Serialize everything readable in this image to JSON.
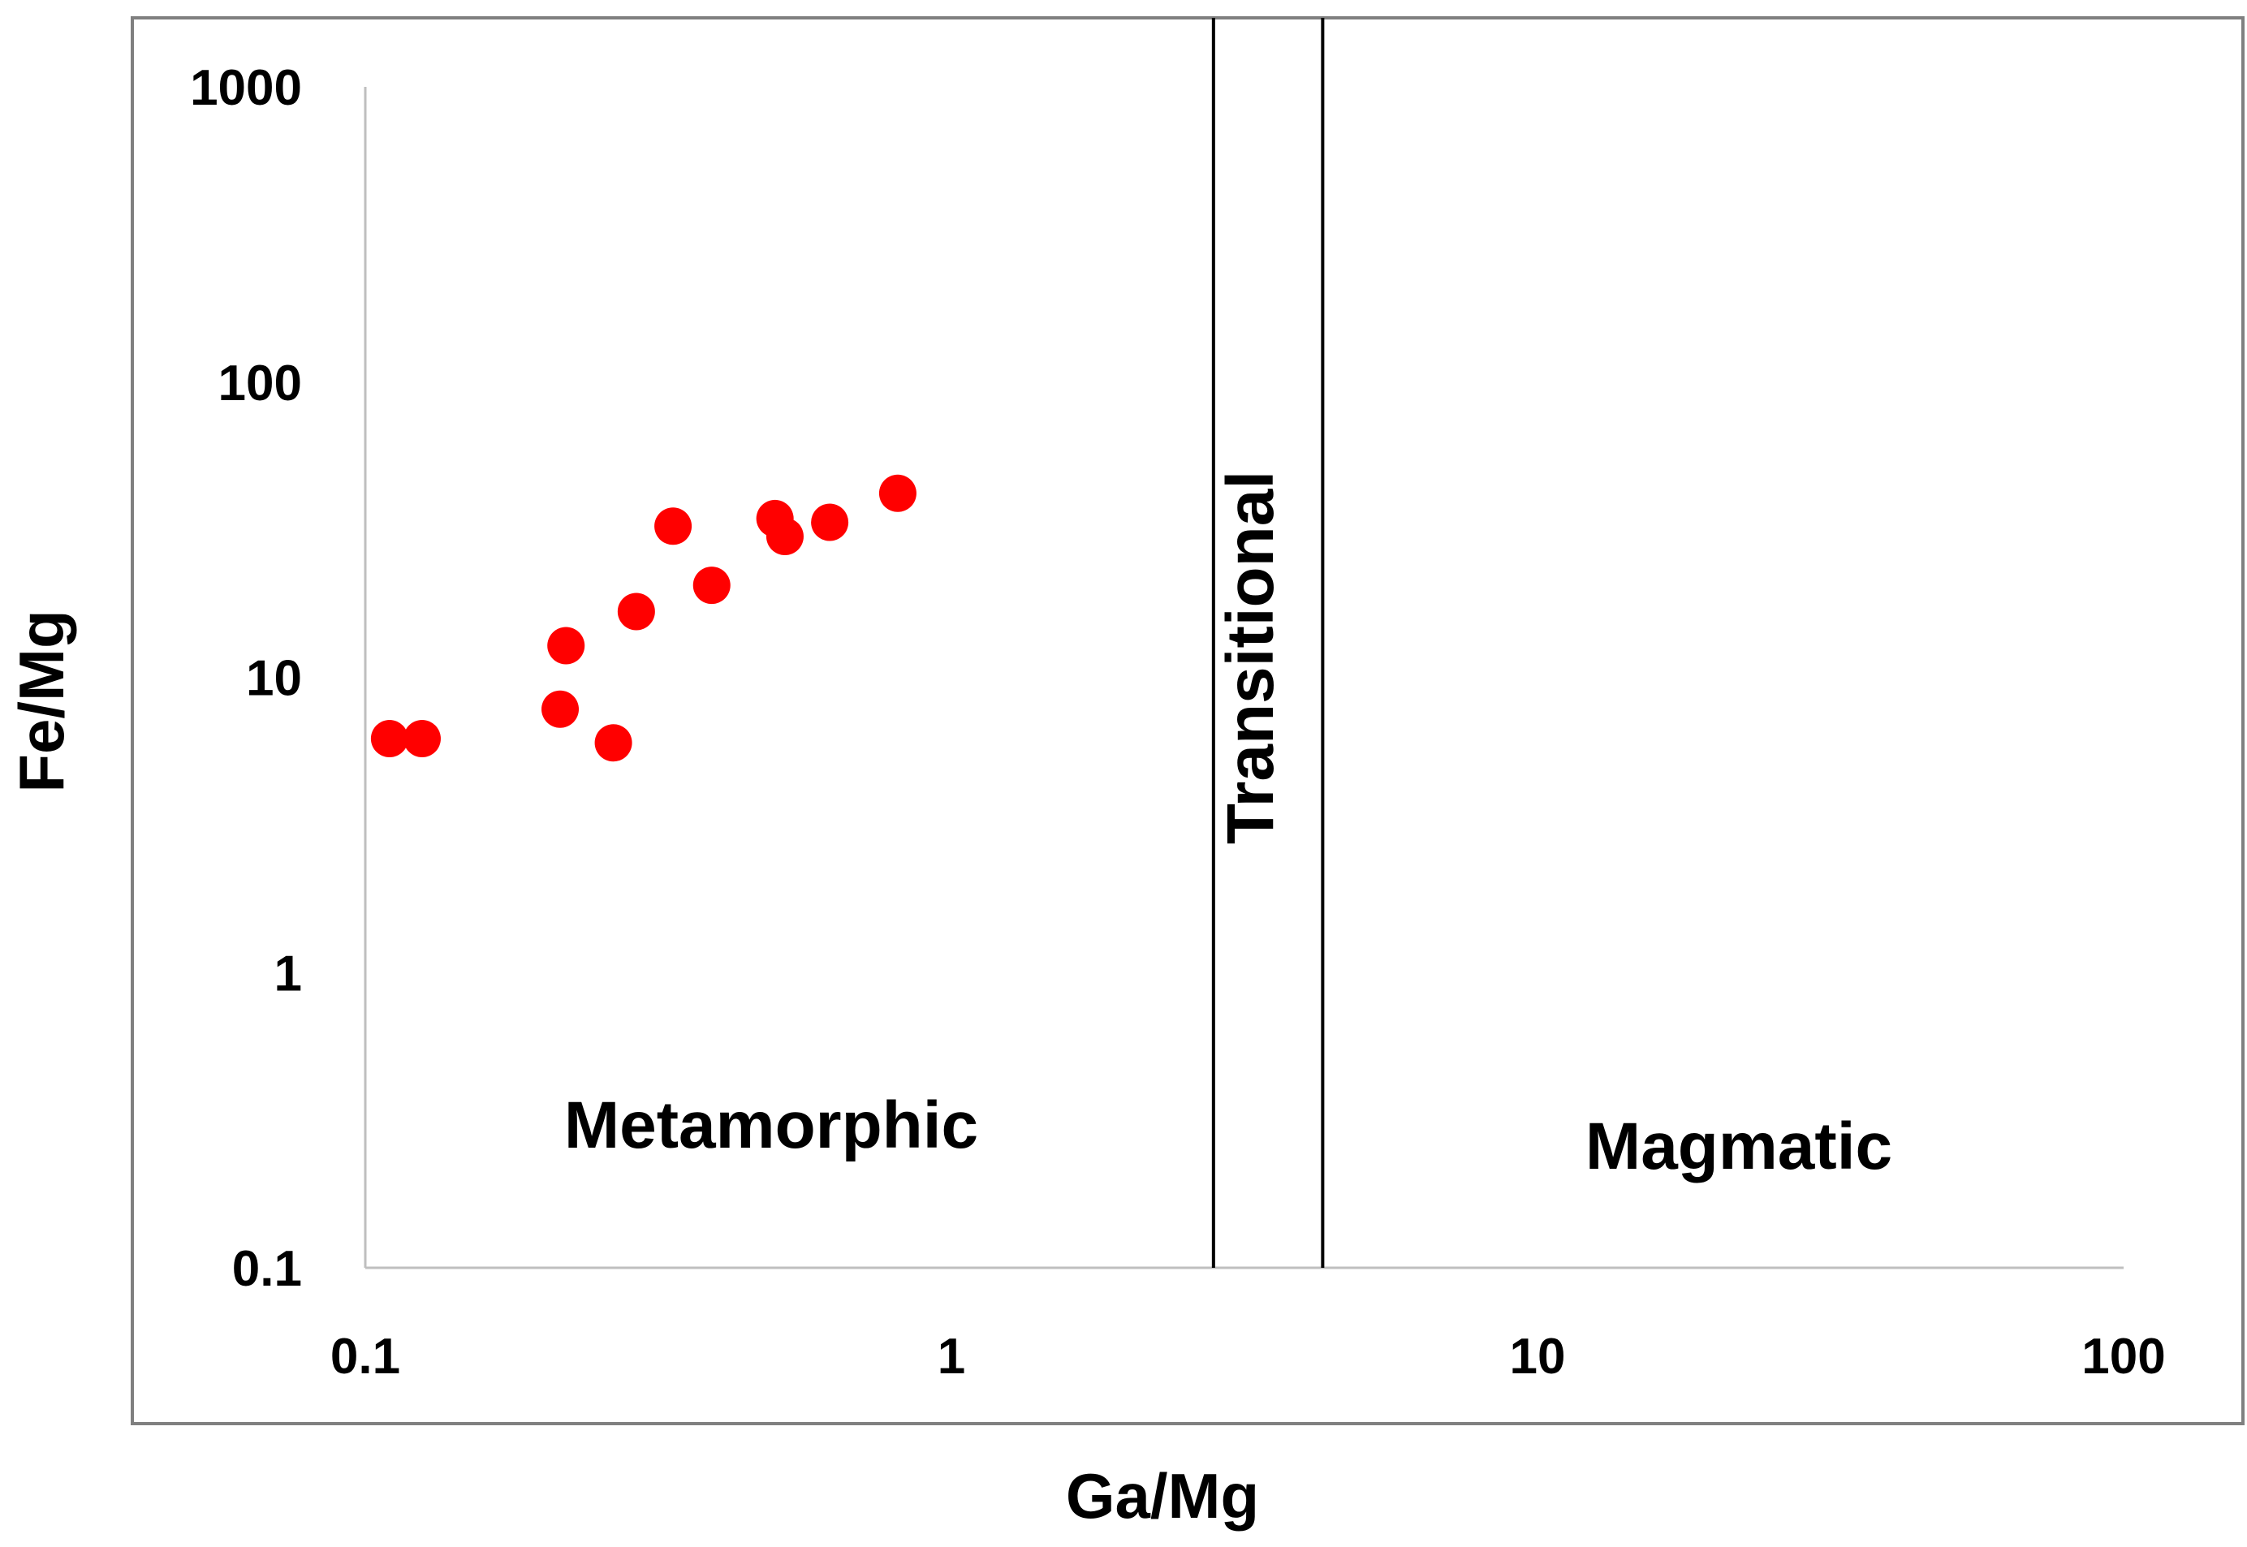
{
  "chart_data": {
    "type": "scatter",
    "title": "",
    "xlabel": "Ga/Mg",
    "ylabel": "Fe/Mg",
    "xscale": "log",
    "yscale": "log",
    "xlim": [
      0.1,
      100
    ],
    "ylim": [
      0.1,
      1000
    ],
    "x_ticks": [
      0.1,
      1,
      10,
      100
    ],
    "x_tick_labels": [
      "0.1",
      "1",
      "10",
      "100"
    ],
    "y_ticks": [
      0.1,
      1,
      10,
      100,
      1000
    ],
    "y_tick_labels": [
      "0.1",
      "1",
      "10",
      "100",
      "1000"
    ],
    "grid": false,
    "legend": "none",
    "boundaries": [
      {
        "name": "metamorphic-transitional-boundary",
        "x": 2.8
      },
      {
        "name": "transitional-magmatic-boundary",
        "x": 4.3
      }
    ],
    "regions": [
      {
        "label": "Metamorphic",
        "x_center": 0.48,
        "y_center": 0.2,
        "orientation": "horizontal"
      },
      {
        "label": "Transitional",
        "x_center": 3.45,
        "y_center": 10,
        "orientation": "vertical"
      },
      {
        "label": "Magmatic",
        "x_center": 18,
        "y_center": 0.17,
        "orientation": "horizontal"
      }
    ],
    "series": [
      {
        "name": "samples",
        "color": "#ff0000",
        "points": [
          {
            "x": 0.11,
            "y": 6.2
          },
          {
            "x": 0.125,
            "y": 6.2
          },
          {
            "x": 0.215,
            "y": 7.8
          },
          {
            "x": 0.22,
            "y": 12.8
          },
          {
            "x": 0.265,
            "y": 6.0
          },
          {
            "x": 0.29,
            "y": 16.7
          },
          {
            "x": 0.335,
            "y": 32.5
          },
          {
            "x": 0.39,
            "y": 20.5
          },
          {
            "x": 0.5,
            "y": 34.5
          },
          {
            "x": 0.52,
            "y": 30.0
          },
          {
            "x": 0.62,
            "y": 33.5
          },
          {
            "x": 0.81,
            "y": 42.0
          }
        ]
      }
    ]
  },
  "colors": {
    "points": "#ff0000",
    "frame": "#808080",
    "axes": "#bfbfbf",
    "boundaries": "#000000"
  }
}
